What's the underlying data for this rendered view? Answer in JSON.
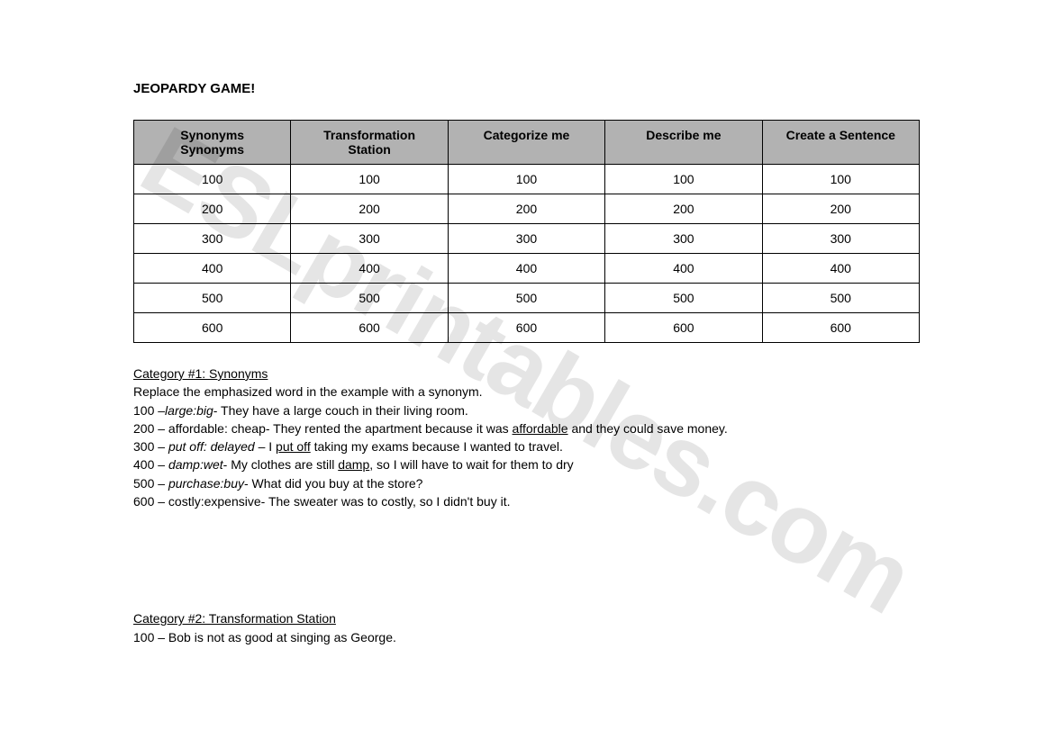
{
  "title": "JEOPARDY GAME!",
  "watermark": "ESLprintables.com",
  "table": {
    "headers": [
      {
        "line1": "Synonyms",
        "line2": "Synonyms"
      },
      {
        "line1": "Transformation",
        "line2": "Station"
      },
      {
        "line1": "Categorize me",
        "line2": ""
      },
      {
        "line1": "Describe me",
        "line2": ""
      },
      {
        "line1": "Create a Sentence",
        "line2": ""
      }
    ],
    "rows": [
      [
        "100",
        "100",
        "100",
        "100",
        "100"
      ],
      [
        "200",
        "200",
        "200",
        "200",
        "200"
      ],
      [
        "300",
        "300",
        "300",
        "300",
        "300"
      ],
      [
        "400",
        "400",
        "400",
        "400",
        "400"
      ],
      [
        "500",
        "500",
        "500",
        "500",
        "500"
      ],
      [
        "600",
        "600",
        "600",
        "600",
        "600"
      ]
    ]
  },
  "category1": {
    "heading": "Category #1: Synonyms ",
    "instruction": "Replace the emphasized word in the example with a synonym.",
    "items": [
      {
        "prefix": "100 –",
        "italic": "large:big",
        "rest": "- They have a large couch in their living room."
      },
      {
        "prefix": "200 – affordable: cheap- They rented the apartment because it was ",
        "underline": "affordable",
        "rest": " and they could save money."
      },
      {
        "prefix": "300 – ",
        "italic": "put off:  delayed",
        "mid": " – I ",
        "underline": "put off",
        "rest": " taking my exams because I wanted to travel."
      },
      {
        "prefix": "400 – ",
        "italic": "damp:wet",
        "mid": "- My clothes are still ",
        "underline": "damp",
        "rest": ", so I will have to wait for them to dry"
      },
      {
        "prefix": "500 – ",
        "italic": "purchase:buy",
        "rest": "- What did you buy at the store?"
      },
      {
        "prefix": "600 – costly:expensive- The sweater was to costly, so I didn't buy it."
      }
    ]
  },
  "category2": {
    "heading": "Category #2: Transformation Station",
    "items": [
      "100 – Bob is not as good at singing as George."
    ]
  }
}
